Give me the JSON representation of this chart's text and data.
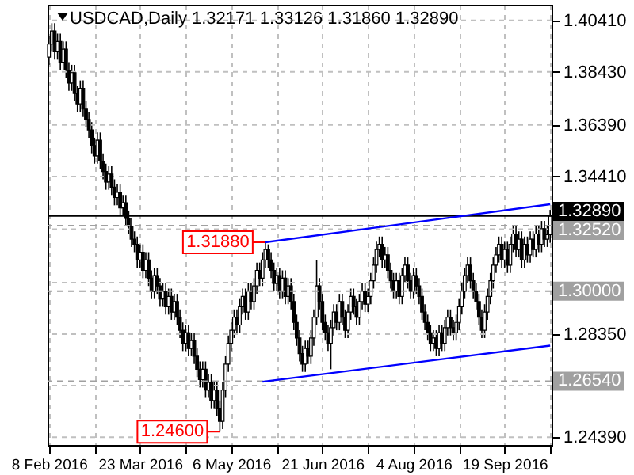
{
  "chart_data": {
    "type": "candlestick",
    "title": "USDCAD,Daily 1.32171 1.33126 1.31860 1.32890",
    "categories": [
      "8 Feb 2016",
      null,
      null,
      null,
      null,
      null,
      null,
      null,
      null,
      null,
      null,
      null,
      null,
      null,
      null,
      null,
      null,
      null,
      null,
      null,
      null,
      null,
      null,
      null,
      null,
      null,
      null,
      null,
      null,
      null,
      null,
      null,
      "23 Mar 2016",
      null,
      null,
      null,
      null,
      null,
      null,
      null,
      null,
      null,
      null,
      null,
      null,
      null,
      null,
      null,
      null,
      null,
      null,
      null,
      null,
      null,
      null,
      null,
      null,
      null,
      null,
      null,
      null,
      null,
      null,
      null,
      "6 May 2016",
      null,
      null,
      null,
      null,
      null,
      null,
      null,
      null,
      null,
      null,
      null,
      null,
      null,
      null,
      null,
      null,
      null,
      null,
      null,
      null,
      null,
      null,
      null,
      null,
      null,
      null,
      null,
      null,
      null,
      null,
      null,
      "21 Jun 2016",
      null,
      null,
      null,
      null,
      null,
      null,
      null,
      null,
      null,
      null,
      null,
      null,
      null,
      null,
      null,
      null,
      null,
      null,
      null,
      null,
      null,
      null,
      null,
      null,
      null,
      null,
      null,
      null,
      null,
      null,
      null,
      "4 Aug 2016",
      null,
      null,
      null,
      null,
      null,
      null,
      null,
      null,
      null,
      null,
      null,
      null,
      null,
      null,
      null,
      null,
      null,
      null,
      null,
      null,
      null,
      null,
      null,
      null,
      null,
      null,
      null,
      null,
      null,
      null,
      null,
      "19 Sep 2016",
      null,
      null,
      null,
      null,
      null,
      null,
      null,
      null,
      null,
      null,
      null,
      null,
      null,
      null,
      null,
      null
    ],
    "ohlc": [
      [
        1.39,
        1.398,
        1.387,
        1.395
      ],
      [
        1.395,
        1.403,
        1.392,
        1.4
      ],
      [
        1.4,
        1.403,
        1.389,
        1.392
      ],
      [
        1.392,
        1.399,
        1.389,
        1.396
      ],
      [
        1.396,
        1.399,
        1.385,
        1.388
      ],
      [
        1.388,
        1.396,
        1.385,
        1.393
      ],
      [
        1.393,
        1.396,
        1.382,
        1.385
      ],
      [
        1.385,
        1.388,
        1.377,
        1.38
      ],
      [
        1.38,
        1.387,
        1.377,
        1.384
      ],
      [
        1.384,
        1.387,
        1.373,
        1.376
      ],
      [
        1.376,
        1.379,
        1.369,
        1.372
      ],
      [
        1.372,
        1.381,
        1.369,
        1.378
      ],
      [
        1.378,
        1.381,
        1.367,
        1.37
      ],
      [
        1.37,
        1.373,
        1.363,
        1.366
      ],
      [
        1.366,
        1.369,
        1.359,
        1.362
      ],
      [
        1.362,
        1.365,
        1.353,
        1.356
      ],
      [
        1.356,
        1.359,
        1.349,
        1.352
      ],
      [
        1.352,
        1.361,
        1.349,
        1.358
      ],
      [
        1.358,
        1.361,
        1.347,
        1.35
      ],
      [
        1.35,
        1.353,
        1.343,
        1.346
      ],
      [
        1.346,
        1.349,
        1.339,
        1.342
      ],
      [
        1.342,
        1.348,
        1.339,
        1.345
      ],
      [
        1.345,
        1.348,
        1.337,
        1.34
      ],
      [
        1.34,
        1.343,
        1.333,
        1.336
      ],
      [
        1.336,
        1.341,
        1.333,
        1.338
      ],
      [
        1.338,
        1.341,
        1.329,
        1.332
      ],
      [
        1.332,
        1.337,
        1.329,
        1.334
      ],
      [
        1.334,
        1.337,
        1.325,
        1.328
      ],
      [
        1.328,
        1.331,
        1.322,
        1.325
      ],
      [
        1.325,
        1.328,
        1.317,
        1.32
      ],
      [
        1.32,
        1.323,
        1.315,
        1.318
      ],
      [
        1.318,
        1.321,
        1.309,
        1.312
      ],
      [
        1.312,
        1.318,
        1.309,
        1.315
      ],
      [
        1.315,
        1.318,
        1.305,
        1.308
      ],
      [
        1.308,
        1.315,
        1.305,
        1.312
      ],
      [
        1.312,
        1.315,
        1.302,
        1.305
      ],
      [
        1.305,
        1.308,
        1.297,
        1.3
      ],
      [
        1.3,
        1.309,
        1.297,
        1.306
      ],
      [
        1.306,
        1.309,
        1.299,
        1.302
      ],
      [
        1.302,
        1.305,
        1.294,
        1.297
      ],
      [
        1.297,
        1.303,
        1.294,
        1.3
      ],
      [
        1.3,
        1.303,
        1.291,
        1.294
      ],
      [
        1.294,
        1.301,
        1.291,
        1.298
      ],
      [
        1.298,
        1.301,
        1.289,
        1.292
      ],
      [
        1.292,
        1.299,
        1.289,
        1.296
      ],
      [
        1.296,
        1.299,
        1.287,
        1.29
      ],
      [
        1.29,
        1.293,
        1.282,
        1.285
      ],
      [
        1.285,
        1.288,
        1.277,
        1.28
      ],
      [
        1.28,
        1.287,
        1.277,
        1.284
      ],
      [
        1.284,
        1.287,
        1.275,
        1.278
      ],
      [
        1.278,
        1.284,
        1.275,
        1.281
      ],
      [
        1.281,
        1.284,
        1.272,
        1.275
      ],
      [
        1.275,
        1.278,
        1.267,
        1.27
      ],
      [
        1.27,
        1.273,
        1.263,
        1.266
      ],
      [
        1.266,
        1.273,
        1.263,
        1.27
      ],
      [
        1.27,
        1.273,
        1.259,
        1.262
      ],
      [
        1.262,
        1.268,
        1.259,
        1.265
      ],
      [
        1.265,
        1.268,
        1.255,
        1.258
      ],
      [
        1.258,
        1.265,
        1.255,
        1.262
      ],
      [
        1.262,
        1.265,
        1.252,
        1.255
      ],
      [
        1.255,
        1.258,
        1.246,
        1.25
      ],
      [
        1.25,
        1.265,
        1.247,
        1.262
      ],
      [
        1.262,
        1.275,
        1.259,
        1.272
      ],
      [
        1.272,
        1.283,
        1.269,
        1.28
      ],
      [
        1.28,
        1.288,
        1.277,
        1.285
      ],
      [
        1.285,
        1.293,
        1.282,
        1.29
      ],
      [
        1.29,
        1.293,
        1.284,
        1.287
      ],
      [
        1.287,
        1.297,
        1.284,
        1.294
      ],
      [
        1.294,
        1.301,
        1.291,
        1.298
      ],
      [
        1.298,
        1.301,
        1.289,
        1.292
      ],
      [
        1.292,
        1.303,
        1.289,
        1.3
      ],
      [
        1.3,
        1.303,
        1.293,
        1.296
      ],
      [
        1.296,
        1.305,
        1.293,
        1.302
      ],
      [
        1.302,
        1.311,
        1.299,
        1.308
      ],
      [
        1.308,
        1.311,
        1.302,
        1.305
      ],
      [
        1.305,
        1.315,
        1.302,
        1.312
      ],
      [
        1.312,
        1.3188,
        1.309,
        1.316
      ],
      [
        1.316,
        1.318,
        1.309,
        1.312
      ],
      [
        1.312,
        1.315,
        1.305,
        1.308
      ],
      [
        1.308,
        1.311,
        1.3,
        1.303
      ],
      [
        1.303,
        1.309,
        1.3,
        1.306
      ],
      [
        1.306,
        1.309,
        1.297,
        1.3
      ],
      [
        1.3,
        1.308,
        1.297,
        1.305
      ],
      [
        1.305,
        1.308,
        1.295,
        1.298
      ],
      [
        1.298,
        1.305,
        1.295,
        1.302
      ],
      [
        1.302,
        1.305,
        1.293,
        1.296
      ],
      [
        1.296,
        1.299,
        1.285,
        1.288
      ],
      [
        1.288,
        1.291,
        1.279,
        1.282
      ],
      [
        1.282,
        1.285,
        1.273,
        1.276
      ],
      [
        1.276,
        1.279,
        1.269,
        1.272
      ],
      [
        1.272,
        1.281,
        1.269,
        1.278
      ],
      [
        1.278,
        1.281,
        1.272,
        1.275
      ],
      [
        1.275,
        1.285,
        1.272,
        1.282
      ],
      [
        1.282,
        1.293,
        1.279,
        1.29
      ],
      [
        1.29,
        1.312,
        1.287,
        1.302
      ],
      [
        1.302,
        1.305,
        1.293,
        1.296
      ],
      [
        1.296,
        1.299,
        1.285,
        1.288
      ],
      [
        1.288,
        1.291,
        1.281,
        1.284
      ],
      [
        1.284,
        1.287,
        1.277,
        1.28
      ],
      [
        1.28,
        1.289,
        1.27,
        1.286
      ],
      [
        1.286,
        1.295,
        1.283,
        1.292
      ],
      [
        1.292,
        1.295,
        1.285,
        1.288
      ],
      [
        1.288,
        1.299,
        1.285,
        1.296
      ],
      [
        1.296,
        1.299,
        1.287,
        1.29
      ],
      [
        1.29,
        1.293,
        1.282,
        1.285
      ],
      [
        1.285,
        1.295,
        1.282,
        1.292
      ],
      [
        1.292,
        1.301,
        1.289,
        1.298
      ],
      [
        1.298,
        1.301,
        1.291,
        1.294
      ],
      [
        1.294,
        1.297,
        1.287,
        1.29
      ],
      [
        1.29,
        1.299,
        1.287,
        1.296
      ],
      [
        1.296,
        1.303,
        1.293,
        1.3
      ],
      [
        1.3,
        1.303,
        1.292,
        1.295
      ],
      [
        1.295,
        1.301,
        1.292,
        1.298
      ],
      [
        1.298,
        1.307,
        1.295,
        1.304
      ],
      [
        1.304,
        1.313,
        1.301,
        1.31
      ],
      [
        1.31,
        1.319,
        1.307,
        1.316
      ],
      [
        1.316,
        1.321,
        1.313,
        1.318
      ],
      [
        1.318,
        1.321,
        1.309,
        1.312
      ],
      [
        1.312,
        1.317,
        1.309,
        1.314
      ],
      [
        1.314,
        1.317,
        1.305,
        1.308
      ],
      [
        1.308,
        1.311,
        1.301,
        1.304
      ],
      [
        1.304,
        1.307,
        1.297,
        1.3
      ],
      [
        1.3,
        1.307,
        1.297,
        1.304
      ],
      [
        1.304,
        1.307,
        1.295,
        1.298
      ],
      [
        1.298,
        1.309,
        1.295,
        1.306
      ],
      [
        1.306,
        1.313,
        1.303,
        1.31
      ],
      [
        1.31,
        1.313,
        1.301,
        1.304
      ],
      [
        1.304,
        1.307,
        1.297,
        1.3
      ],
      [
        1.3,
        1.309,
        1.297,
        1.306
      ],
      [
        1.306,
        1.309,
        1.299,
        1.302
      ],
      [
        1.302,
        1.305,
        1.295,
        1.298
      ],
      [
        1.298,
        1.301,
        1.289,
        1.292
      ],
      [
        1.292,
        1.295,
        1.285,
        1.288
      ],
      [
        1.288,
        1.291,
        1.281,
        1.284
      ],
      [
        1.284,
        1.287,
        1.277,
        1.28
      ],
      [
        1.28,
        1.285,
        1.277,
        1.282
      ],
      [
        1.282,
        1.285,
        1.275,
        1.278
      ],
      [
        1.278,
        1.287,
        1.275,
        1.284
      ],
      [
        1.284,
        1.287,
        1.277,
        1.28
      ],
      [
        1.28,
        1.289,
        1.277,
        1.286
      ],
      [
        1.286,
        1.293,
        1.283,
        1.29
      ],
      [
        1.29,
        1.293,
        1.283,
        1.286
      ],
      [
        1.286,
        1.289,
        1.281,
        1.284
      ],
      [
        1.284,
        1.291,
        1.281,
        1.288
      ],
      [
        1.288,
        1.297,
        1.285,
        1.294
      ],
      [
        1.294,
        1.303,
        1.291,
        1.3
      ],
      [
        1.3,
        1.309,
        1.297,
        1.306
      ],
      [
        1.306,
        1.313,
        1.303,
        1.31
      ],
      [
        1.31,
        1.313,
        1.301,
        1.304
      ],
      [
        1.304,
        1.307,
        1.297,
        1.3
      ],
      [
        1.3,
        1.303,
        1.293,
        1.296
      ],
      [
        1.296,
        1.299,
        1.287,
        1.29
      ],
      [
        1.29,
        1.293,
        1.282,
        1.285
      ],
      [
        1.285,
        1.295,
        1.282,
        1.292
      ],
      [
        1.292,
        1.301,
        1.289,
        1.298
      ],
      [
        1.298,
        1.307,
        1.295,
        1.304
      ],
      [
        1.304,
        1.313,
        1.301,
        1.31
      ],
      [
        1.31,
        1.317,
        1.307,
        1.314
      ],
      [
        1.314,
        1.321,
        1.311,
        1.318
      ],
      [
        1.318,
        1.321,
        1.309,
        1.312
      ],
      [
        1.312,
        1.319,
        1.309,
        1.316
      ],
      [
        1.316,
        1.319,
        1.307,
        1.31
      ],
      [
        1.31,
        1.321,
        1.307,
        1.318
      ],
      [
        1.318,
        1.325,
        1.315,
        1.322
      ],
      [
        1.322,
        1.325,
        1.313,
        1.316
      ],
      [
        1.316,
        1.323,
        1.313,
        1.32
      ],
      [
        1.32,
        1.323,
        1.309,
        1.312
      ],
      [
        1.312,
        1.321,
        1.309,
        1.318
      ],
      [
        1.318,
        1.321,
        1.311,
        1.314
      ],
      [
        1.314,
        1.323,
        1.311,
        1.32
      ],
      [
        1.32,
        1.323,
        1.313,
        1.316
      ],
      [
        1.316,
        1.325,
        1.313,
        1.322
      ],
      [
        1.322,
        1.325,
        1.315,
        1.318
      ],
      [
        1.318,
        1.327,
        1.315,
        1.324
      ],
      [
        1.324,
        1.327,
        1.317,
        1.32
      ],
      [
        1.32,
        1.325,
        1.317,
        1.3217
      ],
      [
        1.32171,
        1.33126,
        1.3186,
        1.3289
      ]
    ],
    "series": [
      {
        "type": "line",
        "color": "#0000ff",
        "values": [
          null,
          null,
          null,
          null,
          null,
          null,
          null,
          null,
          null,
          null,
          null,
          null,
          null,
          null,
          null,
          null,
          null,
          null,
          null,
          null,
          null,
          null,
          null,
          null,
          null,
          null,
          null,
          null,
          null,
          null,
          null,
          null,
          null,
          null,
          null,
          null,
          null,
          null,
          null,
          null,
          null,
          null,
          null,
          null,
          null,
          null,
          null,
          null,
          null,
          null,
          null,
          null,
          null,
          null,
          null,
          null,
          null,
          null,
          null,
          null,
          null,
          null,
          null,
          null,
          null,
          null,
          null,
          null,
          null,
          null,
          null,
          null,
          null,
          null,
          null,
          null,
          1.3188,
          null,
          null,
          null,
          null,
          null,
          null,
          null,
          null,
          null,
          null,
          null,
          null,
          null,
          null,
          null,
          null,
          null,
          null,
          null,
          null,
          null,
          null,
          null,
          null,
          null,
          null,
          null,
          null,
          null,
          null,
          null,
          null,
          null,
          null,
          null,
          null,
          null,
          null,
          null,
          null,
          null,
          null,
          null,
          null,
          null,
          null,
          null,
          null,
          null,
          null,
          null,
          null,
          null,
          null,
          null,
          null,
          null,
          null,
          null,
          null,
          null,
          null,
          null,
          null,
          null,
          null,
          null,
          null,
          null,
          null,
          null,
          null,
          null,
          null,
          null,
          null,
          null,
          null,
          null,
          null,
          null,
          null,
          null,
          null,
          null,
          null,
          null,
          null,
          null,
          null,
          null,
          null,
          null,
          null,
          null,
          null,
          null,
          null,
          null,
          1.3334
        ]
      },
      {
        "type": "line",
        "color": "#0000ff",
        "values": [
          null,
          null,
          null,
          null,
          null,
          null,
          null,
          null,
          null,
          null,
          null,
          null,
          null,
          null,
          null,
          null,
          null,
          null,
          null,
          null,
          null,
          null,
          null,
          null,
          null,
          null,
          null,
          null,
          null,
          null,
          null,
          null,
          null,
          null,
          null,
          null,
          null,
          null,
          null,
          null,
          null,
          null,
          null,
          null,
          null,
          null,
          null,
          null,
          null,
          null,
          null,
          null,
          null,
          null,
          null,
          null,
          null,
          null,
          null,
          null,
          null,
          null,
          null,
          null,
          null,
          null,
          null,
          null,
          null,
          null,
          null,
          null,
          null,
          null,
          null,
          1.2652,
          null,
          null,
          null,
          null,
          null,
          null,
          null,
          null,
          null,
          null,
          null,
          null,
          null,
          null,
          null,
          null,
          null,
          null,
          null,
          null,
          null,
          null,
          null,
          null,
          null,
          null,
          null,
          null,
          null,
          null,
          null,
          null,
          null,
          null,
          null,
          null,
          null,
          null,
          null,
          null,
          null,
          null,
          null,
          null,
          null,
          null,
          null,
          null,
          null,
          null,
          null,
          null,
          null,
          null,
          null,
          null,
          null,
          null,
          null,
          null,
          null,
          null,
          null,
          null,
          null,
          null,
          null,
          null,
          null,
          null,
          null,
          null,
          null,
          null,
          null,
          null,
          null,
          null,
          null,
          null,
          null,
          null,
          null,
          null,
          null,
          null,
          null,
          null,
          null,
          null,
          null,
          null,
          null,
          null,
          null,
          null,
          null,
          null,
          null,
          null,
          1.2791
        ]
      }
    ],
    "ylim": [
      1.2409,
      1.4101
    ],
    "yticks": [
      {
        "value": 1.4041,
        "label": "1.40410"
      },
      {
        "value": 1.3843,
        "label": "1.38430"
      },
      {
        "value": 1.3639,
        "label": "1.36390"
      },
      {
        "value": 1.3441,
        "label": "1.34410"
      },
      {
        "value": 1.3238,
        "label": null
      },
      {
        "value": 1.3033,
        "label": null
      },
      {
        "value": 1.2835,
        "label": "1.28350"
      },
      {
        "value": 1.2637,
        "label": null
      },
      {
        "value": 1.2439,
        "label": "1.24390"
      }
    ],
    "grid": true,
    "line_style": "solid",
    "ref_lines": [
      {
        "axis": "y",
        "value": 1.3289,
        "label": "1.32890",
        "color": "#000000",
        "line_style": "solid"
      },
      {
        "axis": "y",
        "value": 1.3252,
        "label": "1.32520",
        "color": "#a0a0a0",
        "line_style": "dashed"
      },
      {
        "axis": "y",
        "value": 1.3,
        "label": "1.30000",
        "color": "#a0a0a0",
        "line_style": "dashed"
      },
      {
        "axis": "y",
        "value": 1.2654,
        "label": "1.26540",
        "color": "#a0a0a0",
        "line_style": "dashed"
      }
    ],
    "annotations": [
      {
        "text": "1.31880",
        "y": 1.3188
      },
      {
        "text": "1.24600",
        "y": 1.246
      }
    ]
  }
}
